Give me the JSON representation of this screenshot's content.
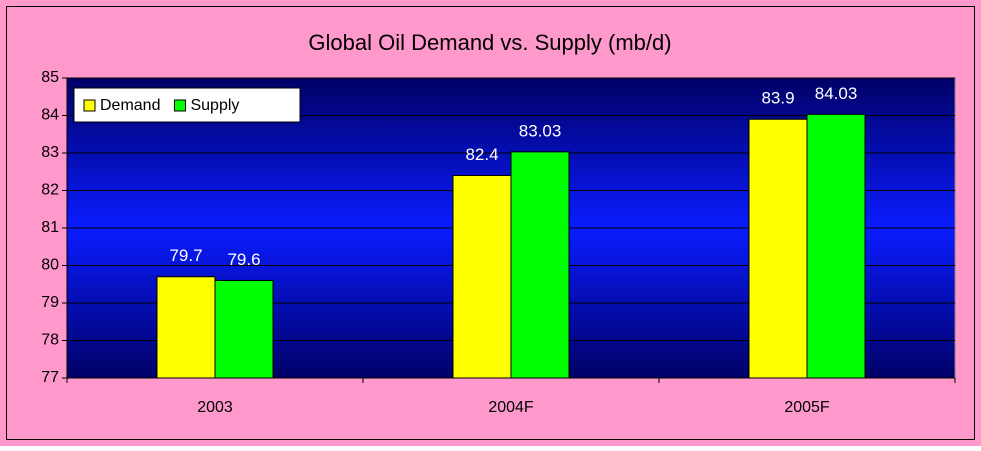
{
  "chart_data": {
    "type": "bar",
    "title": "Global Oil Demand vs. Supply (mb/d)",
    "categories": [
      "2003",
      "2004F",
      "2005F"
    ],
    "series": [
      {
        "name": "Demand",
        "color": "#ffff00",
        "values": [
          79.7,
          82.4,
          83.9
        ]
      },
      {
        "name": "Supply",
        "color": "#00ff00",
        "values": [
          79.6,
          83.03,
          84.03
        ]
      }
    ],
    "ylim": [
      77,
      85
    ],
    "yticks": [
      77,
      78,
      79,
      80,
      81,
      82,
      83,
      84,
      85
    ],
    "grid": true,
    "legend": "top-left"
  }
}
